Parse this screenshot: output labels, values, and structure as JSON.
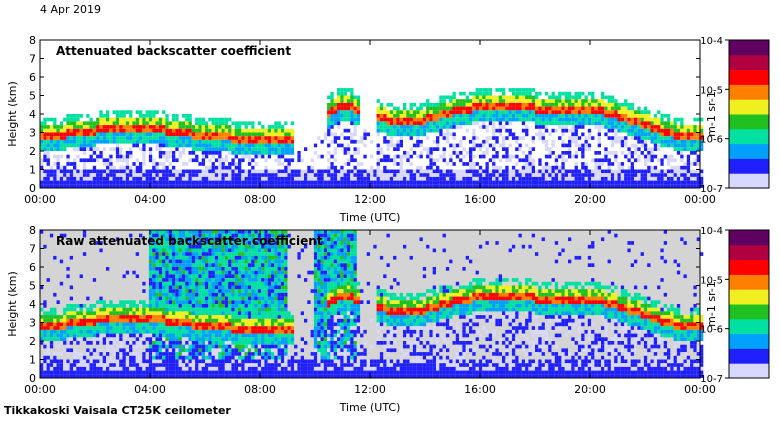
{
  "header": {
    "date": "4 Apr 2019"
  },
  "footer": {
    "site": "Tikkakoski Vaisala CT25K ceilometer"
  },
  "chart_data": [
    {
      "type": "heatmap",
      "title": "Attenuated backscatter coefficient",
      "xlabel": "Time (UTC)",
      "ylabel": "Height (km)",
      "xticks": [
        "00:00",
        "04:00",
        "08:00",
        "12:00",
        "16:00",
        "20:00",
        "00:00"
      ],
      "xlim_hours": [
        0,
        24
      ],
      "yticks": [
        0,
        1,
        2,
        3,
        4,
        5,
        6,
        7,
        8
      ],
      "ylim_km": [
        0,
        8
      ],
      "background": "clear-air below detection shown white",
      "colorbar": {
        "scale": "log",
        "range": [
          1e-07,
          0.0001
        ],
        "labels": [
          "10-7",
          "10-6",
          "10-5",
          "10-4"
        ],
        "label": "m-1 sr-1",
        "colors": [
          "#d8d8ff",
          "#2020ff",
          "#00a0ff",
          "#00e0a0",
          "#20c020",
          "#f0f020",
          "#ff8000",
          "#ff0000",
          "#b00040",
          "#600060"
        ]
      },
      "cloud_base_km": [
        {
          "t": 0,
          "h": 2.8
        },
        {
          "t": 1,
          "h": 3.0
        },
        {
          "t": 2,
          "h": 3.2
        },
        {
          "t": 3,
          "h": 3.3
        },
        {
          "t": 4,
          "h": 3.3
        },
        {
          "t": 5,
          "h": 3.1
        },
        {
          "t": 6,
          "h": 2.9
        },
        {
          "t": 7,
          "h": 2.8
        },
        {
          "t": 8,
          "h": 2.7
        },
        {
          "t": 9,
          "h": 2.6
        },
        {
          "t": 11,
          "h": 4.6
        },
        {
          "t": 13,
          "h": 3.6
        },
        {
          "t": 14,
          "h": 3.8
        },
        {
          "t": 15,
          "h": 4.2
        },
        {
          "t": 16,
          "h": 4.5
        },
        {
          "t": 17,
          "h": 4.6
        },
        {
          "t": 18,
          "h": 4.4
        },
        {
          "t": 19,
          "h": 4.3
        },
        {
          "t": 20,
          "h": 4.4
        },
        {
          "t": 21,
          "h": 4.0
        },
        {
          "t": 22,
          "h": 3.5
        },
        {
          "t": 23,
          "h": 3.0
        },
        {
          "t": 24,
          "h": 2.8
        }
      ]
    },
    {
      "type": "heatmap",
      "title": "Raw attenuated backscatter coefficient",
      "xlabel": "Time (UTC)",
      "ylabel": "Height (km)",
      "xticks": [
        "00:00",
        "04:00",
        "08:00",
        "12:00",
        "16:00",
        "20:00",
        "00:00"
      ],
      "xlim_hours": [
        0,
        24
      ],
      "yticks": [
        0,
        1,
        2,
        3,
        4,
        5,
        6,
        7,
        8
      ],
      "ylim_km": [
        0,
        8
      ],
      "background": "no-data region shown light grey",
      "colorbar": {
        "scale": "log",
        "range": [
          1e-07,
          0.0001
        ],
        "labels": [
          "10-7",
          "10-6",
          "10-5",
          "10-4"
        ],
        "label": "m-1 sr-1",
        "colors": [
          "#d8d8ff",
          "#2020ff",
          "#00a0ff",
          "#00e0a0",
          "#20c020",
          "#f0f020",
          "#ff8000",
          "#ff0000",
          "#b00040",
          "#600060"
        ]
      },
      "noisy_segments_hours": [
        [
          4,
          9
        ],
        [
          10,
          11.5
        ]
      ],
      "cloud_base_km": [
        {
          "t": 0,
          "h": 2.8
        },
        {
          "t": 1,
          "h": 3.0
        },
        {
          "t": 2,
          "h": 3.2
        },
        {
          "t": 3,
          "h": 3.3
        },
        {
          "t": 4,
          "h": 3.3
        },
        {
          "t": 5,
          "h": 3.1
        },
        {
          "t": 6,
          "h": 2.9
        },
        {
          "t": 7,
          "h": 2.8
        },
        {
          "t": 8,
          "h": 2.7
        },
        {
          "t": 9,
          "h": 2.6
        },
        {
          "t": 11,
          "h": 4.6
        },
        {
          "t": 13,
          "h": 3.6
        },
        {
          "t": 14,
          "h": 3.8
        },
        {
          "t": 15,
          "h": 4.2
        },
        {
          "t": 16,
          "h": 4.5
        },
        {
          "t": 17,
          "h": 4.6
        },
        {
          "t": 18,
          "h": 4.4
        },
        {
          "t": 19,
          "h": 4.3
        },
        {
          "t": 20,
          "h": 4.4
        },
        {
          "t": 21,
          "h": 4.0
        },
        {
          "t": 22,
          "h": 3.5
        },
        {
          "t": 23,
          "h": 3.0
        },
        {
          "t": 24,
          "h": 2.8
        }
      ]
    }
  ]
}
